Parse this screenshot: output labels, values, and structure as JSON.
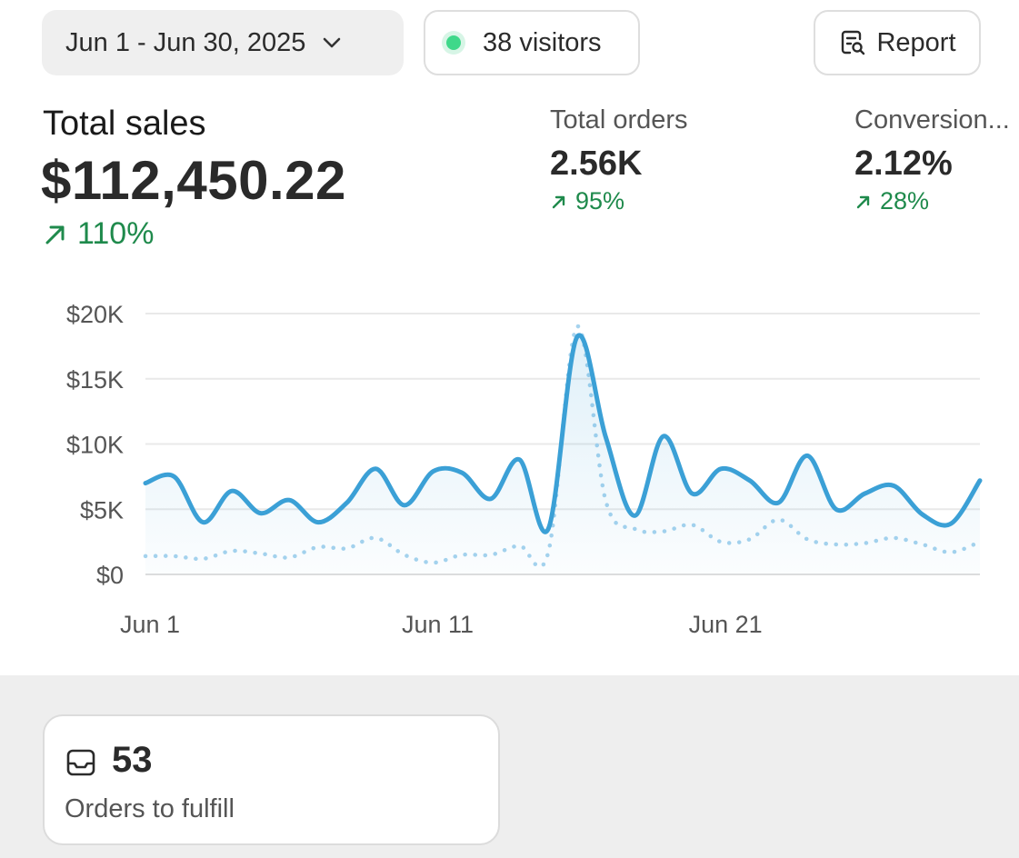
{
  "toolbar": {
    "date_range": "Jun 1 - Jun 30, 2025",
    "visitors": "38 visitors",
    "report_label": "Report"
  },
  "metrics": {
    "total_sales": {
      "label": "Total sales",
      "value": "$112,450.22",
      "change": "110%"
    },
    "total_orders": {
      "label": "Total orders",
      "value": "2.56K",
      "change": "95%"
    },
    "conversion": {
      "label": "Conversion...",
      "value": "2.12%",
      "change": "28%"
    }
  },
  "colors": {
    "accent": "#3ba0d6",
    "comparison": "#a6d3ee",
    "positive": "#1f8a4c",
    "live": "#3fd88a"
  },
  "icons": {
    "date_dropdown": "chevron-down-icon",
    "live_status": "live-dot-icon",
    "report": "report-search-icon",
    "change": "arrow-up-right-icon",
    "orders": "inbox-icon"
  },
  "chart_data": {
    "type": "line",
    "x": [
      1,
      2,
      3,
      4,
      5,
      6,
      7,
      8,
      9,
      10,
      11,
      12,
      13,
      14,
      15,
      16,
      17,
      18,
      19,
      20,
      21,
      22,
      23,
      24,
      25,
      26,
      27,
      28,
      29,
      30
    ],
    "x_ticks": [
      {
        "x": 1,
        "label": "Jun 1"
      },
      {
        "x": 11,
        "label": "Jun 11"
      },
      {
        "x": 21,
        "label": "Jun 21"
      }
    ],
    "y_ticks": [
      {
        "y": 0,
        "label": "$0"
      },
      {
        "y": 5000,
        "label": "$5K"
      },
      {
        "y": 10000,
        "label": "$10K"
      },
      {
        "y": 15000,
        "label": "$15K"
      },
      {
        "y": 20000,
        "label": "$20K"
      }
    ],
    "ylim": [
      0,
      20000
    ],
    "xlim": [
      1,
      30
    ],
    "grid": true,
    "series": [
      {
        "style": "solid",
        "values": [
          7000,
          7500,
          4000,
          6400,
          4700,
          5700,
          4000,
          5500,
          8100,
          5300,
          7900,
          7800,
          5800,
          8800,
          3500,
          18200,
          10500,
          4500,
          10600,
          6200,
          8100,
          7200,
          5500,
          9100,
          5000,
          6200,
          6800,
          4600,
          3900,
          7200
        ]
      },
      {
        "style": "dotted",
        "values": [
          1400,
          1400,
          1200,
          1800,
          1600,
          1300,
          2100,
          2000,
          2800,
          1500,
          900,
          1500,
          1500,
          2200,
          1700,
          19000,
          5600,
          3500,
          3300,
          3800,
          2500,
          2700,
          4200,
          2700,
          2300,
          2400,
          2800,
          2300,
          1700,
          2500
        ]
      }
    ]
  },
  "fulfill": {
    "count": "53",
    "label": "Orders to fulfill"
  }
}
